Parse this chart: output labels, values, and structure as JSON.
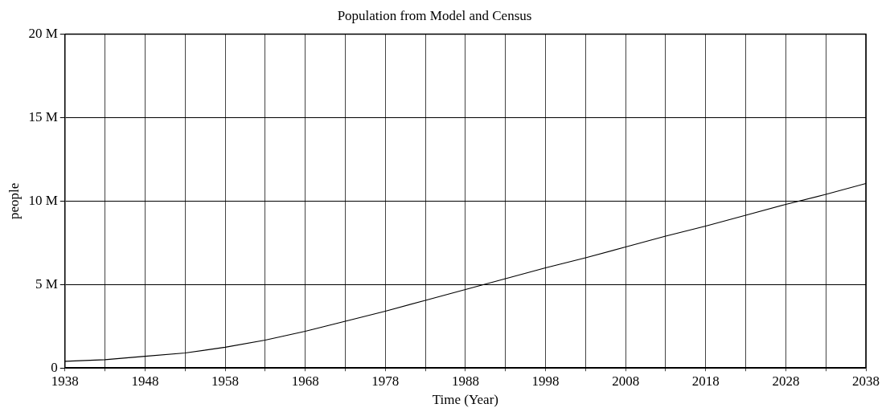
{
  "chart_data": {
    "type": "line",
    "title": "Population from Model and Census",
    "xlabel": "Time (Year)",
    "ylabel": "people",
    "x": [
      1938,
      1943,
      1948,
      1953,
      1958,
      1963,
      1968,
      1973,
      1978,
      1983,
      1988,
      1993,
      1998,
      2003,
      2008,
      2013,
      2018,
      2023,
      2028,
      2033,
      2038
    ],
    "series": [
      {
        "color": "#000000",
        "values": [
          400000,
          500000,
          700000,
          900000,
          1240000,
          1670000,
          2200000,
          2800000,
          3400000,
          4050000,
          4700000,
          5350000,
          6000000,
          6600000,
          7250000,
          7900000,
          8500000,
          9150000,
          9800000,
          10400000,
          11050000
        ]
      }
    ],
    "xlim": [
      1938,
      2038
    ],
    "xticks": [
      1938,
      {
        "value": 1943,
        "label": null
      },
      1948,
      {
        "value": 1953,
        "label": null
      },
      1958,
      {
        "value": 1963,
        "label": null
      },
      1968,
      {
        "value": 1973,
        "label": null
      },
      1978,
      {
        "value": 1983,
        "label": null
      },
      1988,
      {
        "value": 1993,
        "label": null
      },
      1998,
      {
        "value": 2003,
        "label": null
      },
      2008,
      {
        "value": 2013,
        "label": null
      },
      2018,
      {
        "value": 2023,
        "label": null
      },
      2028,
      {
        "value": 2033,
        "label": null
      },
      2038
    ],
    "ylim": [
      0,
      20000000
    ],
    "yticks": [
      {
        "value": 0,
        "label": "0"
      },
      {
        "value": 5000000,
        "label": "5 M"
      },
      {
        "value": 10000000,
        "label": "10 M"
      },
      {
        "value": 15000000,
        "label": "15 M"
      },
      {
        "value": 20000000,
        "label": "20 M"
      }
    ],
    "grid": true,
    "legend": false,
    "marker": "none",
    "line_style": "solid"
  }
}
